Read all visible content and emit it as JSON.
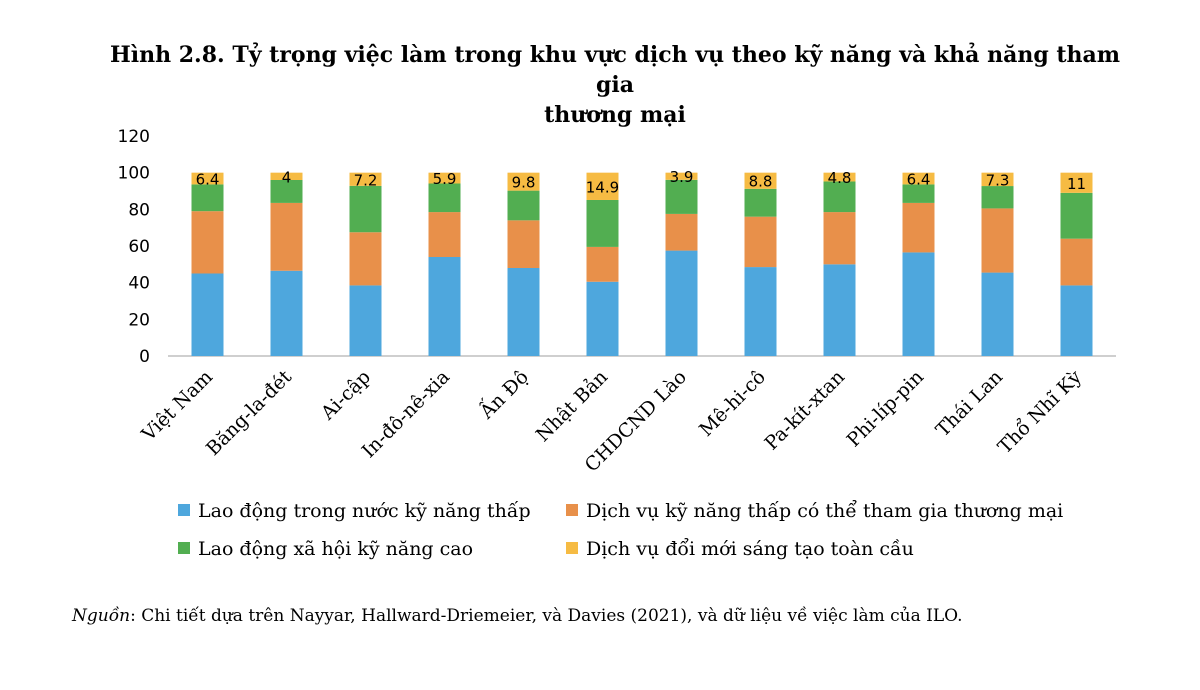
{
  "title_line1": "Hình 2.8. Tỷ trọng việc làm trong khu vực dịch vụ theo kỹ năng và khả năng tham gia",
  "title_line2": "thương mại",
  "source_prefix": "Nguồn",
  "source_text": ": Chi tiết dựa trên Nayyar, Hallward-Driemeier, và Davies (2021), và dữ liệu về việc làm của ILO.",
  "colors": {
    "series1": "#4EA7DD",
    "series2": "#E8904A",
    "series3": "#52AE51",
    "series4": "#F6BB43",
    "axis": "#BFBFBF"
  },
  "chart_data": {
    "type": "bar",
    "stacked": true,
    "ylim": [
      0,
      120
    ],
    "yticks": [
      "0",
      "20",
      "40",
      "60",
      "80",
      "100",
      "120"
    ],
    "categories": [
      "Việt Nam",
      "Băng-la-đét",
      "Ai-cập",
      "In-đô-nê-xia",
      "Ấn Độ",
      "Nhật Bản",
      "CHDCND Lào",
      "Mê-hi-cô",
      "Pa-kít-xtan",
      "Phi-líp-pin",
      "Thái Lan",
      "Thổ Nhĩ Kỳ"
    ],
    "series": [
      {
        "name": "Lao động trong nước kỹ năng thấp",
        "values": [
          45,
          46.5,
          38.5,
          54,
          48,
          40.5,
          57.5,
          48.5,
          50,
          56.5,
          45.5,
          38.5
        ]
      },
      {
        "name": "Dịch vụ kỹ năng thấp có thể tham gia thương mại",
        "values": [
          34,
          37,
          29,
          24.5,
          26,
          19,
          20,
          27.5,
          28.5,
          27,
          35,
          25.5
        ]
      },
      {
        "name": "Lao động xã hội kỹ năng cao",
        "values": [
          14.6,
          12.5,
          25.3,
          15.6,
          16.2,
          25.6,
          18.6,
          15.2,
          16.7,
          10.1,
          12.2,
          25
        ]
      },
      {
        "name": "Dịch vụ đổi mới sáng tạo toàn cầu",
        "values": [
          6.4,
          4,
          7.2,
          5.9,
          9.8,
          14.9,
          3.9,
          8.8,
          4.8,
          6.4,
          7.3,
          11
        ]
      }
    ],
    "data_labels": [
      "6.4",
      "4",
      "7.2",
      "5.9",
      "9.8",
      "14.9",
      "3.9",
      "8.8",
      "4.8",
      "6.4",
      "7.3",
      "11"
    ],
    "legend_position": "bottom",
    "grid": false
  }
}
